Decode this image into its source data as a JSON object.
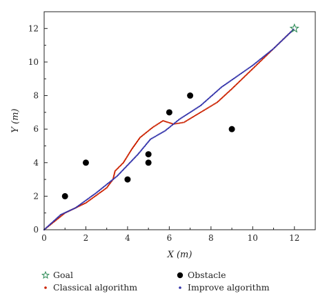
{
  "chart_data": {
    "type": "scatter",
    "xlim": [
      0,
      13
    ],
    "ylim": [
      0,
      13
    ],
    "x_ticks": [
      0,
      2,
      4,
      6,
      8,
      10,
      12
    ],
    "y_ticks": [
      0,
      2,
      4,
      6,
      8,
      10,
      12
    ],
    "x_tick_labels": [
      "0",
      "2",
      "4",
      "6",
      "8",
      "10",
      "12"
    ],
    "y_tick_labels": [
      "0",
      "2",
      "4",
      "6",
      "8",
      "10",
      "12"
    ],
    "xlabel": "X (m)",
    "ylabel": "Y (m)",
    "grid": false,
    "legend_placement": "bottom-outside",
    "series": [
      {
        "name": "Goal",
        "marker": "star",
        "color": "#2e8b57",
        "points": [
          [
            12,
            12
          ]
        ]
      },
      {
        "name": "Obstacle",
        "marker": "circle",
        "color": "#000000",
        "points": [
          [
            1,
            2
          ],
          [
            2,
            4
          ],
          [
            4,
            3
          ],
          [
            5,
            4.5
          ],
          [
            5,
            4
          ],
          [
            6,
            7
          ],
          [
            7,
            8
          ],
          [
            9,
            6
          ]
        ]
      },
      {
        "name": "Classical algorithm",
        "marker": "dot",
        "color": "#cc2200",
        "path": [
          [
            0,
            0
          ],
          [
            1,
            1
          ],
          [
            2,
            1.6
          ],
          [
            3,
            2.5
          ],
          [
            3.3,
            3.0
          ],
          [
            3.4,
            3.5
          ],
          [
            3.8,
            4.0
          ],
          [
            4.2,
            4.8
          ],
          [
            4.6,
            5.5
          ],
          [
            5.2,
            6.1
          ],
          [
            5.7,
            6.5
          ],
          [
            6.2,
            6.3
          ],
          [
            6.7,
            6.4
          ],
          [
            7.5,
            7.0
          ],
          [
            8.3,
            7.6
          ],
          [
            9,
            8.4
          ],
          [
            10,
            9.6
          ],
          [
            11,
            10.8
          ],
          [
            12,
            12
          ]
        ]
      },
      {
        "name": "Improve algorithm",
        "marker": "dot",
        "color": "#3333aa",
        "path": [
          [
            0,
            0
          ],
          [
            0.8,
            0.9
          ],
          [
            1.5,
            1.3
          ],
          [
            2.5,
            2.2
          ],
          [
            3.5,
            3.2
          ],
          [
            4.5,
            4.5
          ],
          [
            5.1,
            5.4
          ],
          [
            5.8,
            5.9
          ],
          [
            6.5,
            6.6
          ],
          [
            7.5,
            7.4
          ],
          [
            8.5,
            8.5
          ],
          [
            10,
            9.8
          ],
          [
            11,
            10.8
          ],
          [
            12,
            12
          ]
        ]
      }
    ]
  }
}
